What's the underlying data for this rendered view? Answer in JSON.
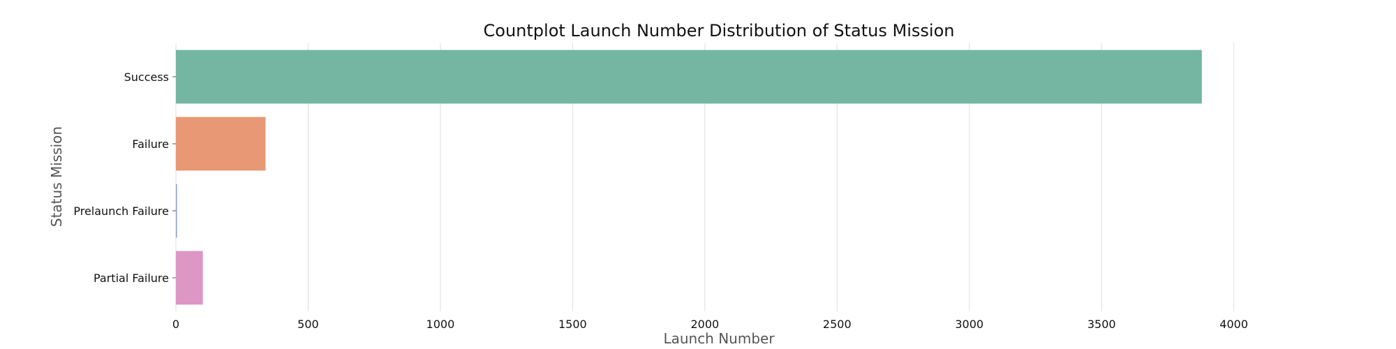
{
  "chart_data": {
    "type": "bar",
    "orientation": "horizontal",
    "title": "Countplot Launch Number Distribution of Status Mission",
    "xlabel": "Launch Number",
    "ylabel": "Status Mission",
    "categories": [
      "Success",
      "Failure",
      "Prelaunch Failure",
      "Partial Failure"
    ],
    "values": [
      3879,
      339,
      4,
      102
    ],
    "colors": [
      "#74b6a1",
      "#e99875",
      "#8da0cb",
      "#dc97c4"
    ],
    "xlim": [
      0,
      4600
    ],
    "xticks": [
      0,
      500,
      1000,
      1500,
      2000,
      2500,
      3000,
      3500,
      4000
    ],
    "grid": "vertical",
    "legend": "none"
  }
}
